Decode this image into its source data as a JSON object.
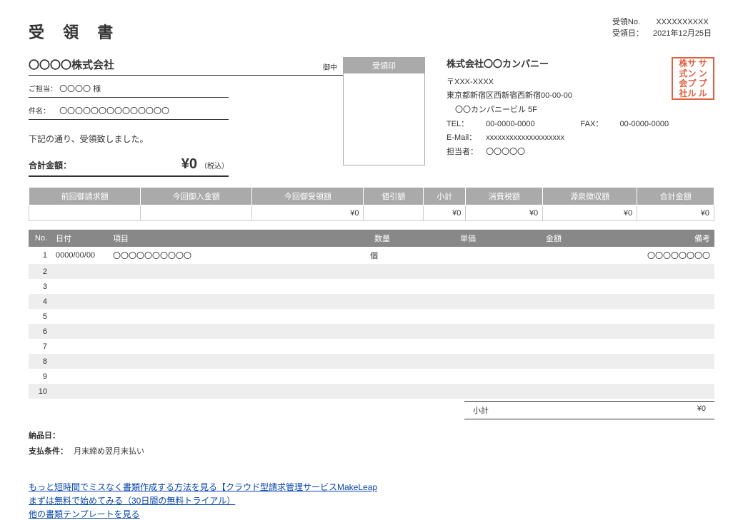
{
  "meta": {
    "doc_no_label": "受領No.",
    "doc_no": "XXXXXXXXXX",
    "date_label": "受領日：",
    "date": "2021年12月25日"
  },
  "title": "受 領 書",
  "client": {
    "name": "〇〇〇〇株式会社",
    "onchu": "御中",
    "contact_label": "ご担当：",
    "contact": "〇〇〇〇 様",
    "title_label": "件名：",
    "title": "〇〇〇〇〇〇〇〇〇〇〇〇〇〇"
  },
  "confirm_text": "下記の通り、受領致しました。",
  "total": {
    "label": "合計金額：",
    "value": "¥0",
    "tax": "（税込）"
  },
  "stamp_header": "受領印",
  "company": {
    "name": "株式会社〇〇カンパニー",
    "postal": "〒XXX-XXXX",
    "address1": "東京都新宿区西新宿西新宿00-00-00",
    "address2": "〇〇カンパニービル 5F",
    "tel_label": "TEL：",
    "tel": "00-0000-0000",
    "fax_label": "FAX：",
    "fax": "00-0000-0000",
    "email_label": "E-Mail：",
    "email": "xxxxxxxxxxxxxxxxxxxx",
    "person_label": "担当者：",
    "person": "〇〇〇〇〇"
  },
  "seal": {
    "line1": "株サ サ",
    "line2": "式ン ン",
    "line3": "会プ プ",
    "line4": "社ル ル"
  },
  "summary": {
    "headers": [
      "前回御請求額",
      "今回御入金額",
      "今回御受領額",
      "値引額",
      "小計",
      "消費税額",
      "源泉徴収額",
      "合計金額"
    ],
    "values": [
      "",
      "",
      "¥0",
      "",
      "¥0",
      "¥0",
      "¥0",
      "¥0"
    ]
  },
  "item_headers": {
    "no": "No.",
    "date": "日付",
    "name": "項目",
    "qty": "数量",
    "price": "単価",
    "amt": "金額",
    "note": "備考"
  },
  "items": [
    {
      "no": "1",
      "date": "0000/00/00",
      "name": "〇〇〇〇〇〇〇〇〇〇",
      "qty": "",
      "unit": "個",
      "price": "",
      "amt": "",
      "note": "〇〇〇〇〇〇〇〇"
    },
    {
      "no": "2"
    },
    {
      "no": "3"
    },
    {
      "no": "4"
    },
    {
      "no": "5"
    },
    {
      "no": "6"
    },
    {
      "no": "7"
    },
    {
      "no": "8"
    },
    {
      "no": "9"
    },
    {
      "no": "10"
    }
  ],
  "subtotal": {
    "label": "小計",
    "value": "¥0"
  },
  "footer": {
    "delivery_label": "納品日：",
    "delivery": "",
    "terms_label": "支払条件：",
    "terms": "月末締め翌月末払い"
  },
  "links": {
    "l1": "もっと短時間でミスなく書類作成する方法を見る【クラウド型請求管理サービスMakeLeap",
    "l2": "まずは無料で始めてみる（30日間の無料トライアル）",
    "l3": "他の書類テンプレートを見る"
  }
}
